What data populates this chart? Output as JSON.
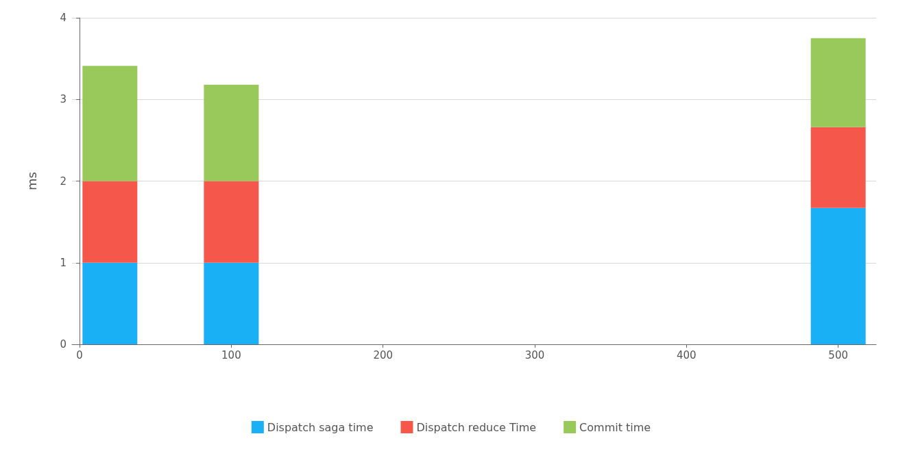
{
  "chart_data": {
    "type": "bar",
    "stacked": true,
    "x": [
      20,
      100,
      500
    ],
    "ylabel": "ms",
    "series": [
      {
        "name": "Dispatch saga time",
        "color": "#1ab0f5",
        "values": [
          1,
          1,
          1.67
        ]
      },
      {
        "name": "Dispatch reduce Time",
        "color": "#f5584a",
        "values": [
          1,
          1,
          0.99
        ]
      },
      {
        "name": "Commit time",
        "color": "#99c95a",
        "values": [
          1.41,
          1.18,
          1.09
        ]
      }
    ],
    "xlim": [
      -5,
      525
    ],
    "xticks": [
      0,
      100,
      200,
      300,
      400,
      500
    ],
    "ylim": [
      0,
      4
    ],
    "yticks": [
      0,
      1,
      2,
      3,
      4
    ],
    "grid": "y",
    "legend": "bottom"
  }
}
